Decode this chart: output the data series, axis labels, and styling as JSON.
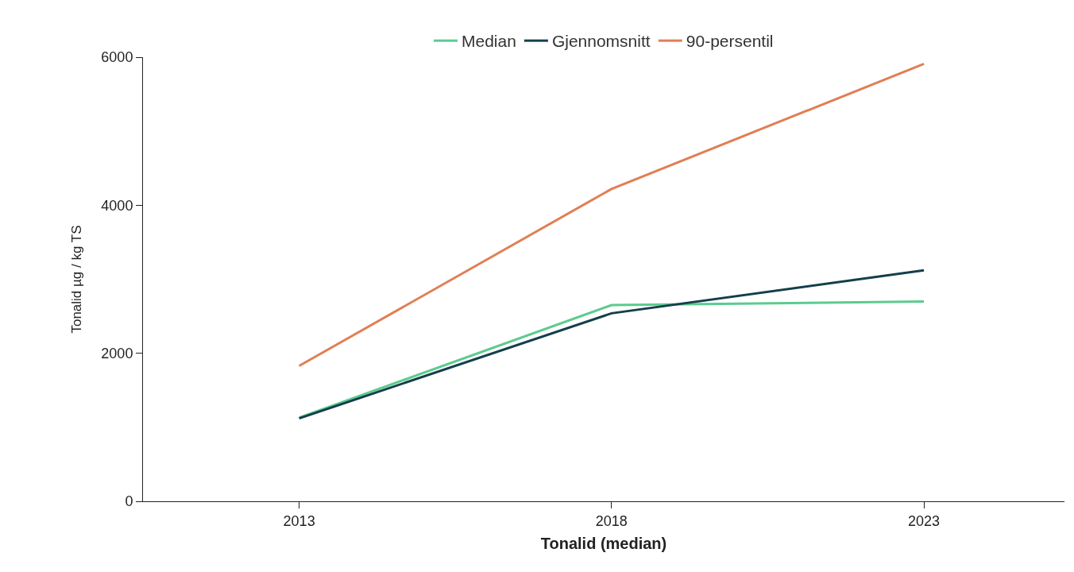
{
  "chart_data": {
    "type": "line",
    "xlabel": "Tonalid (median)",
    "ylabel": "Tonalid µg / kg TS",
    "x": [
      2013,
      2018,
      2023
    ],
    "xlim": [
      2010.5,
      2025.25
    ],
    "xticks": [
      2013,
      2018,
      2023
    ],
    "ylim": [
      0,
      6000
    ],
    "yticks": [
      0,
      2000,
      4000,
      6000
    ],
    "legend": "top",
    "marker": "none",
    "line_style": "solid",
    "series": [
      {
        "name": "Median",
        "color": "#5ccb8f",
        "values": [
          1130,
          2650,
          2700
        ]
      },
      {
        "name": "Gjennomsnitt",
        "color": "#143f4c",
        "values": [
          1120,
          2540,
          3120
        ]
      },
      {
        "name": "90-persentil",
        "color": "#e07f55",
        "values": [
          1830,
          4220,
          5910
        ]
      }
    ]
  }
}
